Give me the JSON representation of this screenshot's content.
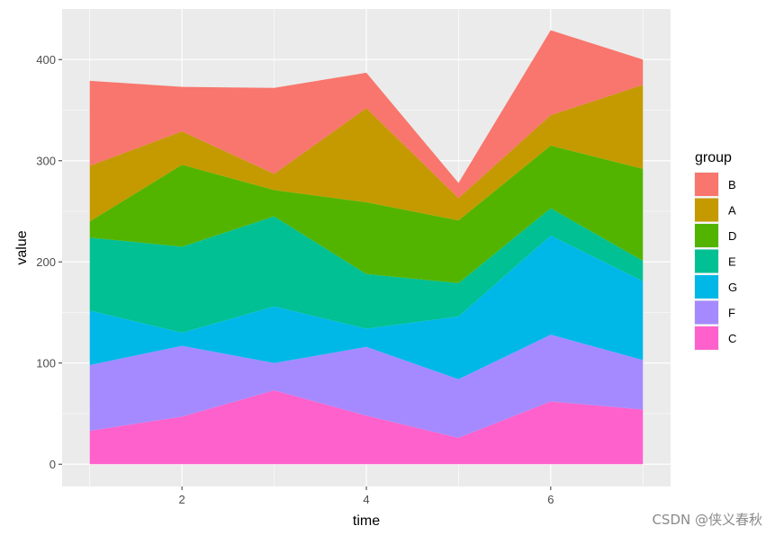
{
  "chart_data": {
    "type": "area",
    "stacked": true,
    "x_label": "time",
    "y_label": "value",
    "x": [
      1,
      2,
      3,
      4,
      5,
      6,
      7
    ],
    "xlim": [
      0.7,
      7.3
    ],
    "ylim": [
      -22,
      450
    ],
    "x_ticks": [
      2,
      4,
      6
    ],
    "y_ticks": [
      0,
      100,
      200,
      300,
      400
    ],
    "legend_title": "group",
    "legend_position": "right",
    "background": "#ebebeb",
    "grid": true,
    "series": [
      {
        "name": "C",
        "color": "#FF61CC",
        "values": [
          33,
          47,
          73,
          48,
          26,
          62,
          54
        ]
      },
      {
        "name": "F",
        "color": "#A58AFF",
        "values": [
          65,
          70,
          27,
          68,
          58,
          66,
          49
        ]
      },
      {
        "name": "G",
        "color": "#00B8E7",
        "values": [
          54,
          13,
          56,
          18,
          62,
          98,
          78
        ]
      },
      {
        "name": "E",
        "color": "#00C094",
        "values": [
          72,
          85,
          89,
          54,
          33,
          27,
          20
        ]
      },
      {
        "name": "D",
        "color": "#53B400",
        "values": [
          16,
          81,
          26,
          71,
          62,
          62,
          91
        ]
      },
      {
        "name": "A",
        "color": "#C49A00",
        "values": [
          55,
          33,
          16,
          93,
          22,
          30,
          83
        ]
      },
      {
        "name": "B",
        "color": "#F8766D",
        "values": [
          84,
          44,
          85,
          35,
          15,
          84,
          25
        ]
      }
    ],
    "legend_order": [
      "B",
      "A",
      "D",
      "E",
      "G",
      "F",
      "C"
    ]
  },
  "watermark": "CSDN @侠义春秋"
}
